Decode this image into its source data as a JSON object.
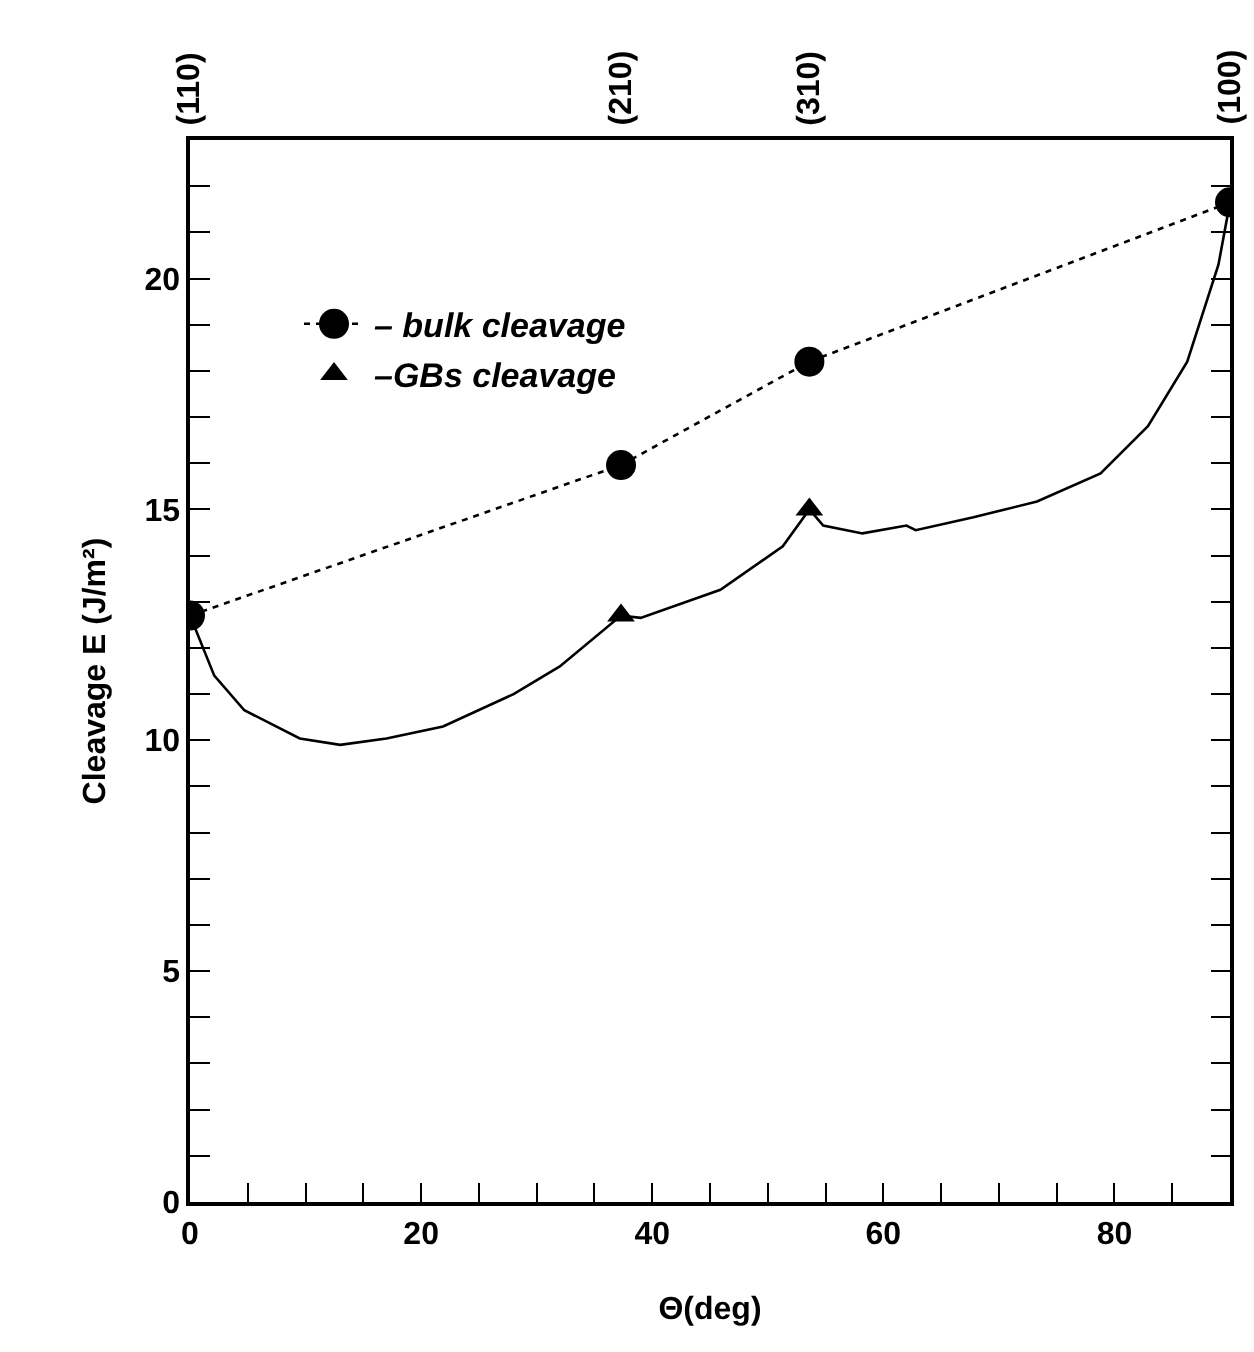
{
  "chart_data": {
    "type": "line",
    "xlabel": "Θ(deg)",
    "ylabel": "Cleavage E (J/m²)",
    "xlim": [
      0,
      90
    ],
    "ylim": [
      0,
      23
    ],
    "xticks": [
      0,
      {
        "value": 5,
        "label": null
      },
      {
        "value": 10,
        "label": null
      },
      {
        "value": 15,
        "label": null
      },
      20,
      {
        "value": 25,
        "label": null
      },
      {
        "value": 30,
        "label": null
      },
      {
        "value": 35,
        "label": null
      },
      40,
      {
        "value": 45,
        "label": null
      },
      {
        "value": 50,
        "label": null
      },
      {
        "value": 55,
        "label": null
      },
      60,
      {
        "value": 65,
        "label": null
      },
      {
        "value": 70,
        "label": null
      },
      {
        "value": 75,
        "label": null
      },
      80,
      {
        "value": 85,
        "label": null
      }
    ],
    "yticks": [
      0,
      {
        "value": 1,
        "label": null
      },
      {
        "value": 2,
        "label": null
      },
      {
        "value": 3,
        "label": null
      },
      {
        "value": 4,
        "label": null
      },
      5,
      {
        "value": 6,
        "label": null
      },
      {
        "value": 7,
        "label": null
      },
      {
        "value": 8,
        "label": null
      },
      {
        "value": 9,
        "label": null
      },
      10,
      {
        "value": 11,
        "label": null
      },
      {
        "value": 12,
        "label": null
      },
      {
        "value": 13,
        "label": null
      },
      {
        "value": 14,
        "label": null
      },
      15,
      {
        "value": 16,
        "label": null
      },
      {
        "value": 17,
        "label": null
      },
      {
        "value": 18,
        "label": null
      },
      {
        "value": 19,
        "label": null
      },
      20,
      {
        "value": 21,
        "label": null
      },
      {
        "value": 22,
        "label": null
      }
    ],
    "annotations": [
      "(110)",
      "(210)",
      "(310)",
      "(100)"
    ],
    "legend": "top left",
    "series": [
      {
        "name": "– bulk cleavage",
        "marker": "circle",
        "line_style": "dotted",
        "color": "#000000",
        "x": [
          0,
          37.3,
          53.6,
          90
        ],
        "values": [
          12.7,
          15.96,
          18.2,
          21.65
        ]
      },
      {
        "name": "–GBs cleavage",
        "type": "scatter",
        "marker": "triangle",
        "color": "#000000",
        "x": [
          37.3,
          53.6
        ],
        "values": [
          12.7,
          15.0
        ]
      },
      {
        "marker": "none",
        "line_style": "solid",
        "color": "#000000",
        "x": [
          0,
          2.1,
          4.7,
          9.5,
          13,
          17,
          21.9,
          28,
          32,
          37.3,
          39,
          45.9,
          51.3,
          53.6,
          54.8,
          58.2,
          62,
          62.8,
          67.8,
          73.3,
          78.8,
          82.9,
          86.3,
          89,
          90
        ],
        "values": [
          12.7,
          11.4,
          10.65,
          10.04,
          9.9,
          10.04,
          10.3,
          11.0,
          11.6,
          12.7,
          12.65,
          13.26,
          14.2,
          15.0,
          14.65,
          14.48,
          14.65,
          14.55,
          14.83,
          15.17,
          15.78,
          16.8,
          18.2,
          20.3,
          21.65
        ]
      }
    ]
  }
}
